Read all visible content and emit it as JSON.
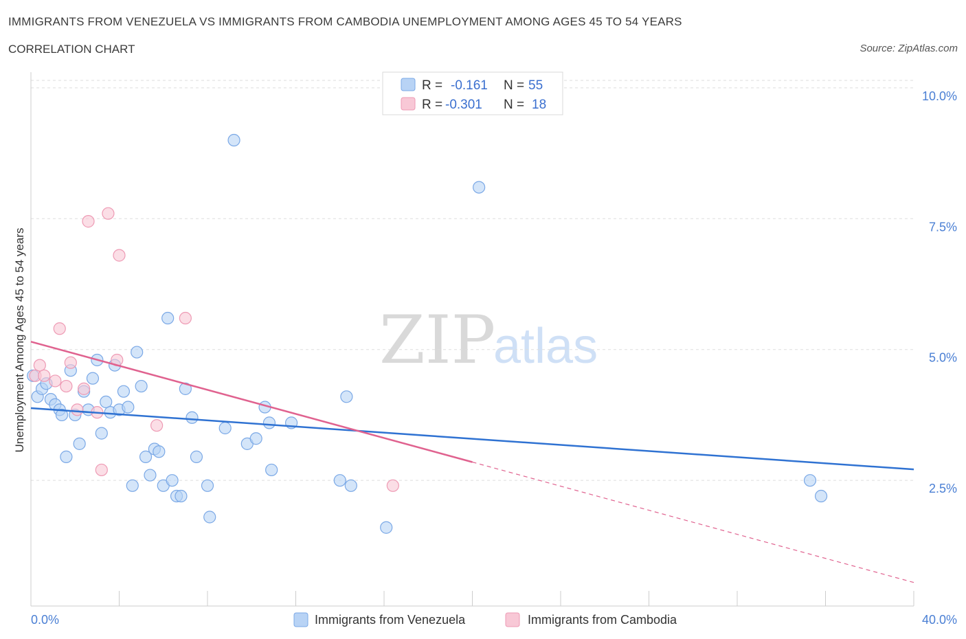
{
  "title": "IMMIGRANTS FROM VENEZUELA VS IMMIGRANTS FROM CAMBODIA UNEMPLOYMENT AMONG AGES 45 TO 54 YEARS",
  "subtitle": "CORRELATION CHART",
  "source": "Source: ZipAtlas.com",
  "watermark": {
    "zip": "ZIP",
    "atlas": "atlas"
  },
  "colors": {
    "venezuela_fill": "#b8d3f5",
    "venezuela_stroke": "#7aa8e6",
    "venezuela_line": "#2f72d2",
    "cambodia_fill": "#f8c8d6",
    "cambodia_stroke": "#ee9ab4",
    "cambodia_line": "#e0628f",
    "accent": "#4a7fd4"
  },
  "legend": {
    "venezuela": {
      "r_label": "R =",
      "r_value": "-0.161",
      "n_label": "N =",
      "n_value": "55"
    },
    "cambodia": {
      "r_label": "R =",
      "r_value": "-0.301",
      "n_label": "N =",
      "n_value": "18"
    }
  },
  "chart_data": {
    "type": "scatter",
    "title": "IMMIGRANTS FROM VENEZUELA VS IMMIGRANTS FROM CAMBODIA UNEMPLOYMENT AMONG AGES 45 TO 54 YEARS",
    "xlabel": "",
    "ylabel": "Unemployment Among Ages 45 to 54 years",
    "xlim": [
      0,
      40
    ],
    "ylim": [
      0.1,
      10.3
    ],
    "x_tick_labels": [
      "0.0%",
      "40.0%"
    ],
    "y_ticks": [
      {
        "value": 10.0,
        "label": "10.0%"
      },
      {
        "value": 7.5,
        "label": "7.5%"
      },
      {
        "value": 5.0,
        "label": "5.0%"
      },
      {
        "value": 2.5,
        "label": "2.5%"
      }
    ],
    "series": [
      {
        "name": "Immigrants from Venezuela",
        "points": [
          [
            0.3,
            4.1
          ],
          [
            0.5,
            4.25
          ],
          [
            0.7,
            4.35
          ],
          [
            0.9,
            4.05
          ],
          [
            1.1,
            3.95
          ],
          [
            1.3,
            3.85
          ],
          [
            1.4,
            3.75
          ],
          [
            1.6,
            2.95
          ],
          [
            1.8,
            4.6
          ],
          [
            2.0,
            3.75
          ],
          [
            2.2,
            3.2
          ],
          [
            2.4,
            4.2
          ],
          [
            2.6,
            3.85
          ],
          [
            2.8,
            4.45
          ],
          [
            3.0,
            4.8
          ],
          [
            3.2,
            3.4
          ],
          [
            3.4,
            4.0
          ],
          [
            3.6,
            3.8
          ],
          [
            3.8,
            4.7
          ],
          [
            4.0,
            3.85
          ],
          [
            4.2,
            4.2
          ],
          [
            4.4,
            3.9
          ],
          [
            4.6,
            2.4
          ],
          [
            4.8,
            4.95
          ],
          [
            5.0,
            4.3
          ],
          [
            5.2,
            2.95
          ],
          [
            5.4,
            2.6
          ],
          [
            5.6,
            3.1
          ],
          [
            5.8,
            3.05
          ],
          [
            6.0,
            2.4
          ],
          [
            6.2,
            5.6
          ],
          [
            6.4,
            2.5
          ],
          [
            6.6,
            2.2
          ],
          [
            6.8,
            2.2
          ],
          [
            7.0,
            4.25
          ],
          [
            7.3,
            3.7
          ],
          [
            7.5,
            2.95
          ],
          [
            8.0,
            2.4
          ],
          [
            8.1,
            1.8
          ],
          [
            8.8,
            3.5
          ],
          [
            9.2,
            9.0
          ],
          [
            9.8,
            3.2
          ],
          [
            10.2,
            3.3
          ],
          [
            10.6,
            3.9
          ],
          [
            10.8,
            3.6
          ],
          [
            10.9,
            2.7
          ],
          [
            11.8,
            3.6
          ],
          [
            14.0,
            2.5
          ],
          [
            14.3,
            4.1
          ],
          [
            14.5,
            2.4
          ],
          [
            16.1,
            1.6
          ],
          [
            20.3,
            8.1
          ],
          [
            35.3,
            2.5
          ],
          [
            35.8,
            2.2
          ],
          [
            0.1,
            4.5
          ]
        ],
        "trend": {
          "x": [
            0,
            40
          ],
          "y": [
            3.88,
            2.71
          ],
          "style": "solid"
        }
      },
      {
        "name": "Immigrants from Cambodia",
        "points": [
          [
            0.2,
            4.5
          ],
          [
            0.4,
            4.7
          ],
          [
            0.6,
            4.5
          ],
          [
            1.1,
            4.4
          ],
          [
            1.3,
            5.4
          ],
          [
            1.6,
            4.3
          ],
          [
            1.8,
            4.75
          ],
          [
            2.1,
            3.85
          ],
          [
            2.4,
            4.25
          ],
          [
            2.6,
            7.45
          ],
          [
            3.0,
            3.8
          ],
          [
            3.5,
            7.6
          ],
          [
            3.9,
            4.8
          ],
          [
            4.0,
            6.8
          ],
          [
            5.7,
            3.55
          ],
          [
            7.0,
            5.6
          ],
          [
            3.2,
            2.7
          ],
          [
            16.4,
            2.4
          ]
        ],
        "trend": {
          "x": [
            0,
            20
          ],
          "y": [
            5.15,
            2.85
          ],
          "style": "solid",
          "extension": {
            "x": [
              20,
              40
            ],
            "y": [
              2.85,
              0.55
            ],
            "style": "dashed"
          }
        }
      }
    ],
    "legend_position": "top-center"
  }
}
